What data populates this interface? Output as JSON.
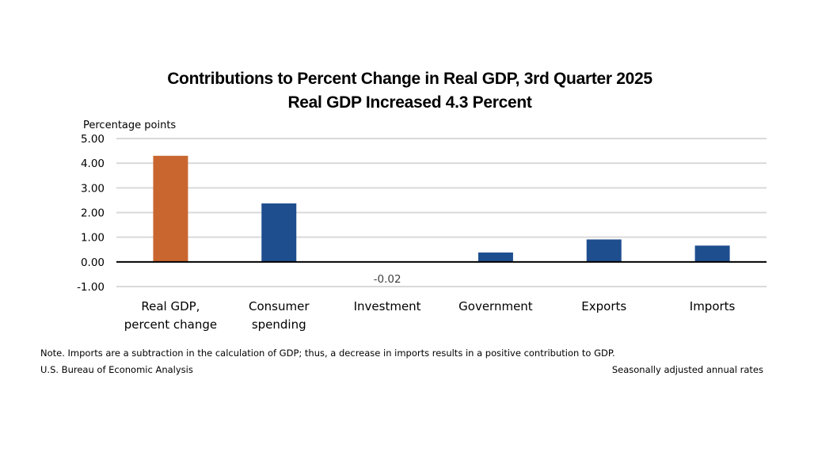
{
  "chart_data": {
    "type": "bar",
    "title": "Contributions to Percent Change in Real GDP, 3rd Quarter 2025",
    "subtitle": "Real GDP Increased 4.3 Percent",
    "ylabel": "Percentage points",
    "xlabel": "",
    "ylim": [
      -1.0,
      5.0
    ],
    "yticks": [
      5.0,
      4.0,
      3.0,
      2.0,
      1.0,
      0.0,
      -1.0
    ],
    "ytick_labels": [
      "5.00",
      "4.00",
      "3.00",
      "2.00",
      "1.00",
      "0.00",
      "-1.00"
    ],
    "grid": true,
    "categories": [
      [
        "Real GDP,",
        "percent change"
      ],
      [
        "Consumer",
        "spending"
      ],
      [
        "Investment"
      ],
      [
        "Government"
      ],
      [
        "Exports"
      ],
      [
        "Imports"
      ]
    ],
    "values": [
      4.3,
      2.37,
      -0.02,
      0.38,
      0.91,
      0.66
    ],
    "colors": [
      "#C9662F",
      "#1F4E8F",
      "#1F4E8F",
      "#1F4E8F",
      "#1F4E8F",
      "#1F4E8F"
    ],
    "data_labels": [
      null,
      null,
      "-0.02",
      null,
      null,
      null
    ]
  },
  "footer": {
    "note": "Note. Imports are a subtraction in the calculation of GDP; thus, a decrease in imports results in a positive contribution to GDP.",
    "source": "U.S. Bureau of Economic Analysis",
    "rates": "Seasonally adjusted annual rates"
  }
}
